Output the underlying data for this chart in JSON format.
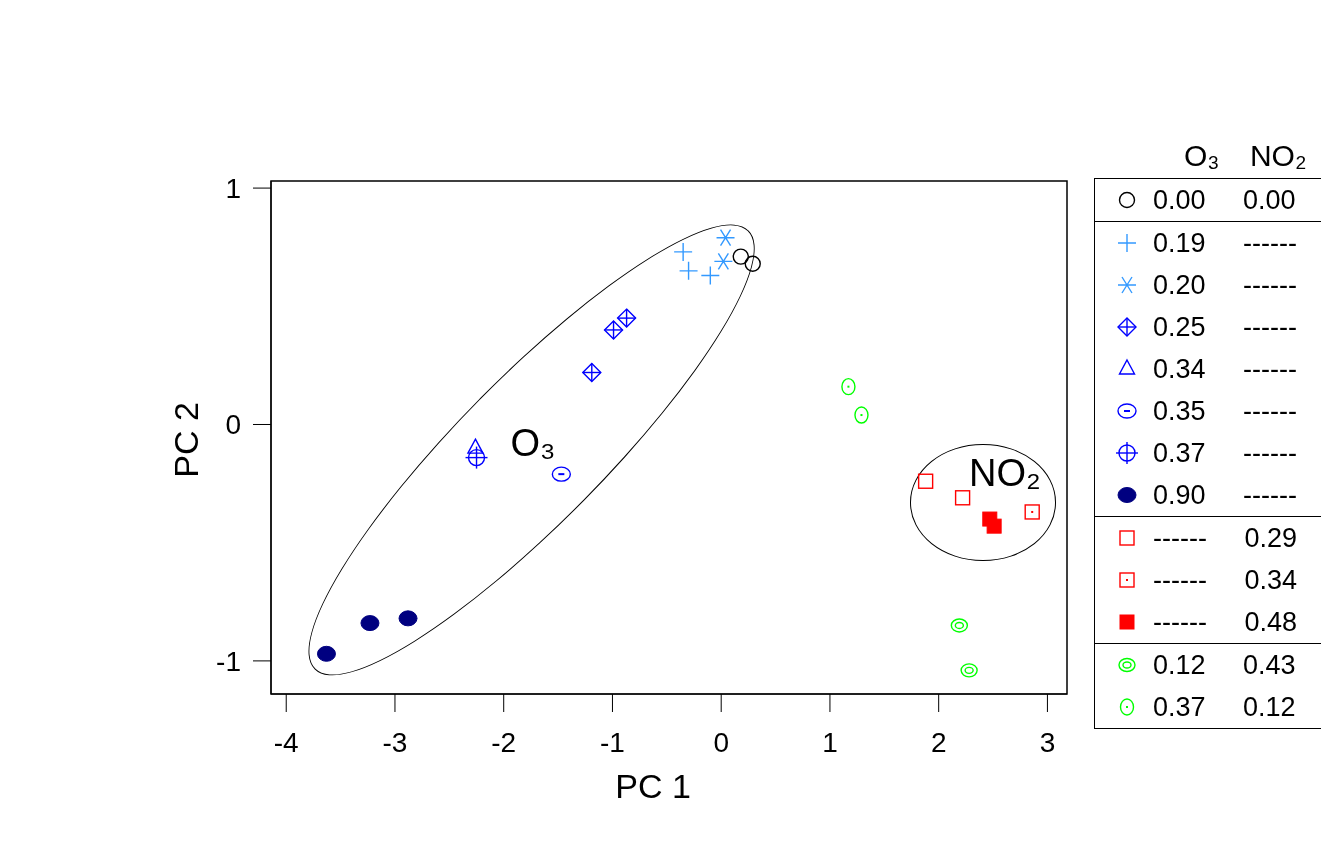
{
  "chart_data": {
    "type": "scatter",
    "xlabel": "PC 1",
    "ylabel": "PC 2",
    "legend_title": "O₃ NO₂",
    "legend": "right",
    "xlim": [
      -4.14,
      3.18
    ],
    "ylim": [
      -1.14,
      1.03
    ],
    "xticks": [
      -4,
      -3,
      -2,
      -1,
      0,
      1,
      2,
      3
    ],
    "yticks": [
      -1,
      0,
      1
    ],
    "annotations": [
      "O₃",
      "NO₂"
    ],
    "series": [
      {
        "name": "0.00 0.00",
        "color": "#000000",
        "marker": "circle",
        "x": [
          0.18,
          0.29
        ],
        "values": [
          0.71,
          0.68
        ]
      },
      {
        "name": "0.19 ------",
        "color": "#3399ff",
        "marker": "cross",
        "x": [
          -0.35,
          -0.3,
          -0.1
        ],
        "values": [
          0.73,
          0.65,
          0.63
        ]
      },
      {
        "name": "0.20 ------",
        "color": "#3399ff",
        "marker": "cross",
        "x": [
          0.04,
          0.02
        ],
        "values": [
          0.79,
          0.69
        ]
      },
      {
        "name": "0.25 ------",
        "color": "#0000ff",
        "marker": "diamond",
        "x": [
          -1.19,
          -0.99,
          -0.87
        ],
        "values": [
          0.22,
          0.4,
          0.45
        ]
      },
      {
        "name": "0.34 ------",
        "color": "#0000ff",
        "marker": "triangle",
        "x": [
          -2.26
        ],
        "values": [
          -0.1
        ]
      },
      {
        "name": "0.35 ------",
        "color": "#0000ff",
        "marker": "circle",
        "x": [
          -1.47
        ],
        "values": [
          -0.21
        ]
      },
      {
        "name": "0.37 ------",
        "color": "#0000ff",
        "marker": "circle",
        "x": [
          -2.25
        ],
        "values": [
          -0.14
        ]
      },
      {
        "name": "0.90 ------",
        "color": "#000080",
        "marker": "circle",
        "x": [
          -3.63,
          -3.23,
          -2.88
        ],
        "values": [
          -0.97,
          -0.84,
          -0.82
        ]
      },
      {
        "name": "------ 0.29",
        "color": "#ff0000",
        "marker": "square",
        "x": [
          1.88,
          2.22
        ],
        "values": [
          -0.24,
          -0.31
        ]
      },
      {
        "name": "------ 0.34",
        "color": "#ff0000",
        "marker": "square",
        "x": [
          2.86
        ],
        "values": [
          -0.37
        ]
      },
      {
        "name": "------ 0.48",
        "color": "#ff0000",
        "marker": "square",
        "x": [
          2.47,
          2.51
        ],
        "values": [
          -0.4,
          -0.43
        ]
      },
      {
        "name": "0.12 0.43",
        "color": "#00ff00",
        "marker": "circle",
        "x": [
          2.19,
          2.28
        ],
        "values": [
          -0.85,
          -1.04
        ]
      },
      {
        "name": "0.37 0.12",
        "color": "#00ff00",
        "marker": "circle",
        "x": [
          1.17,
          1.29
        ],
        "values": [
          0.16,
          0.04
        ]
      }
    ]
  }
}
